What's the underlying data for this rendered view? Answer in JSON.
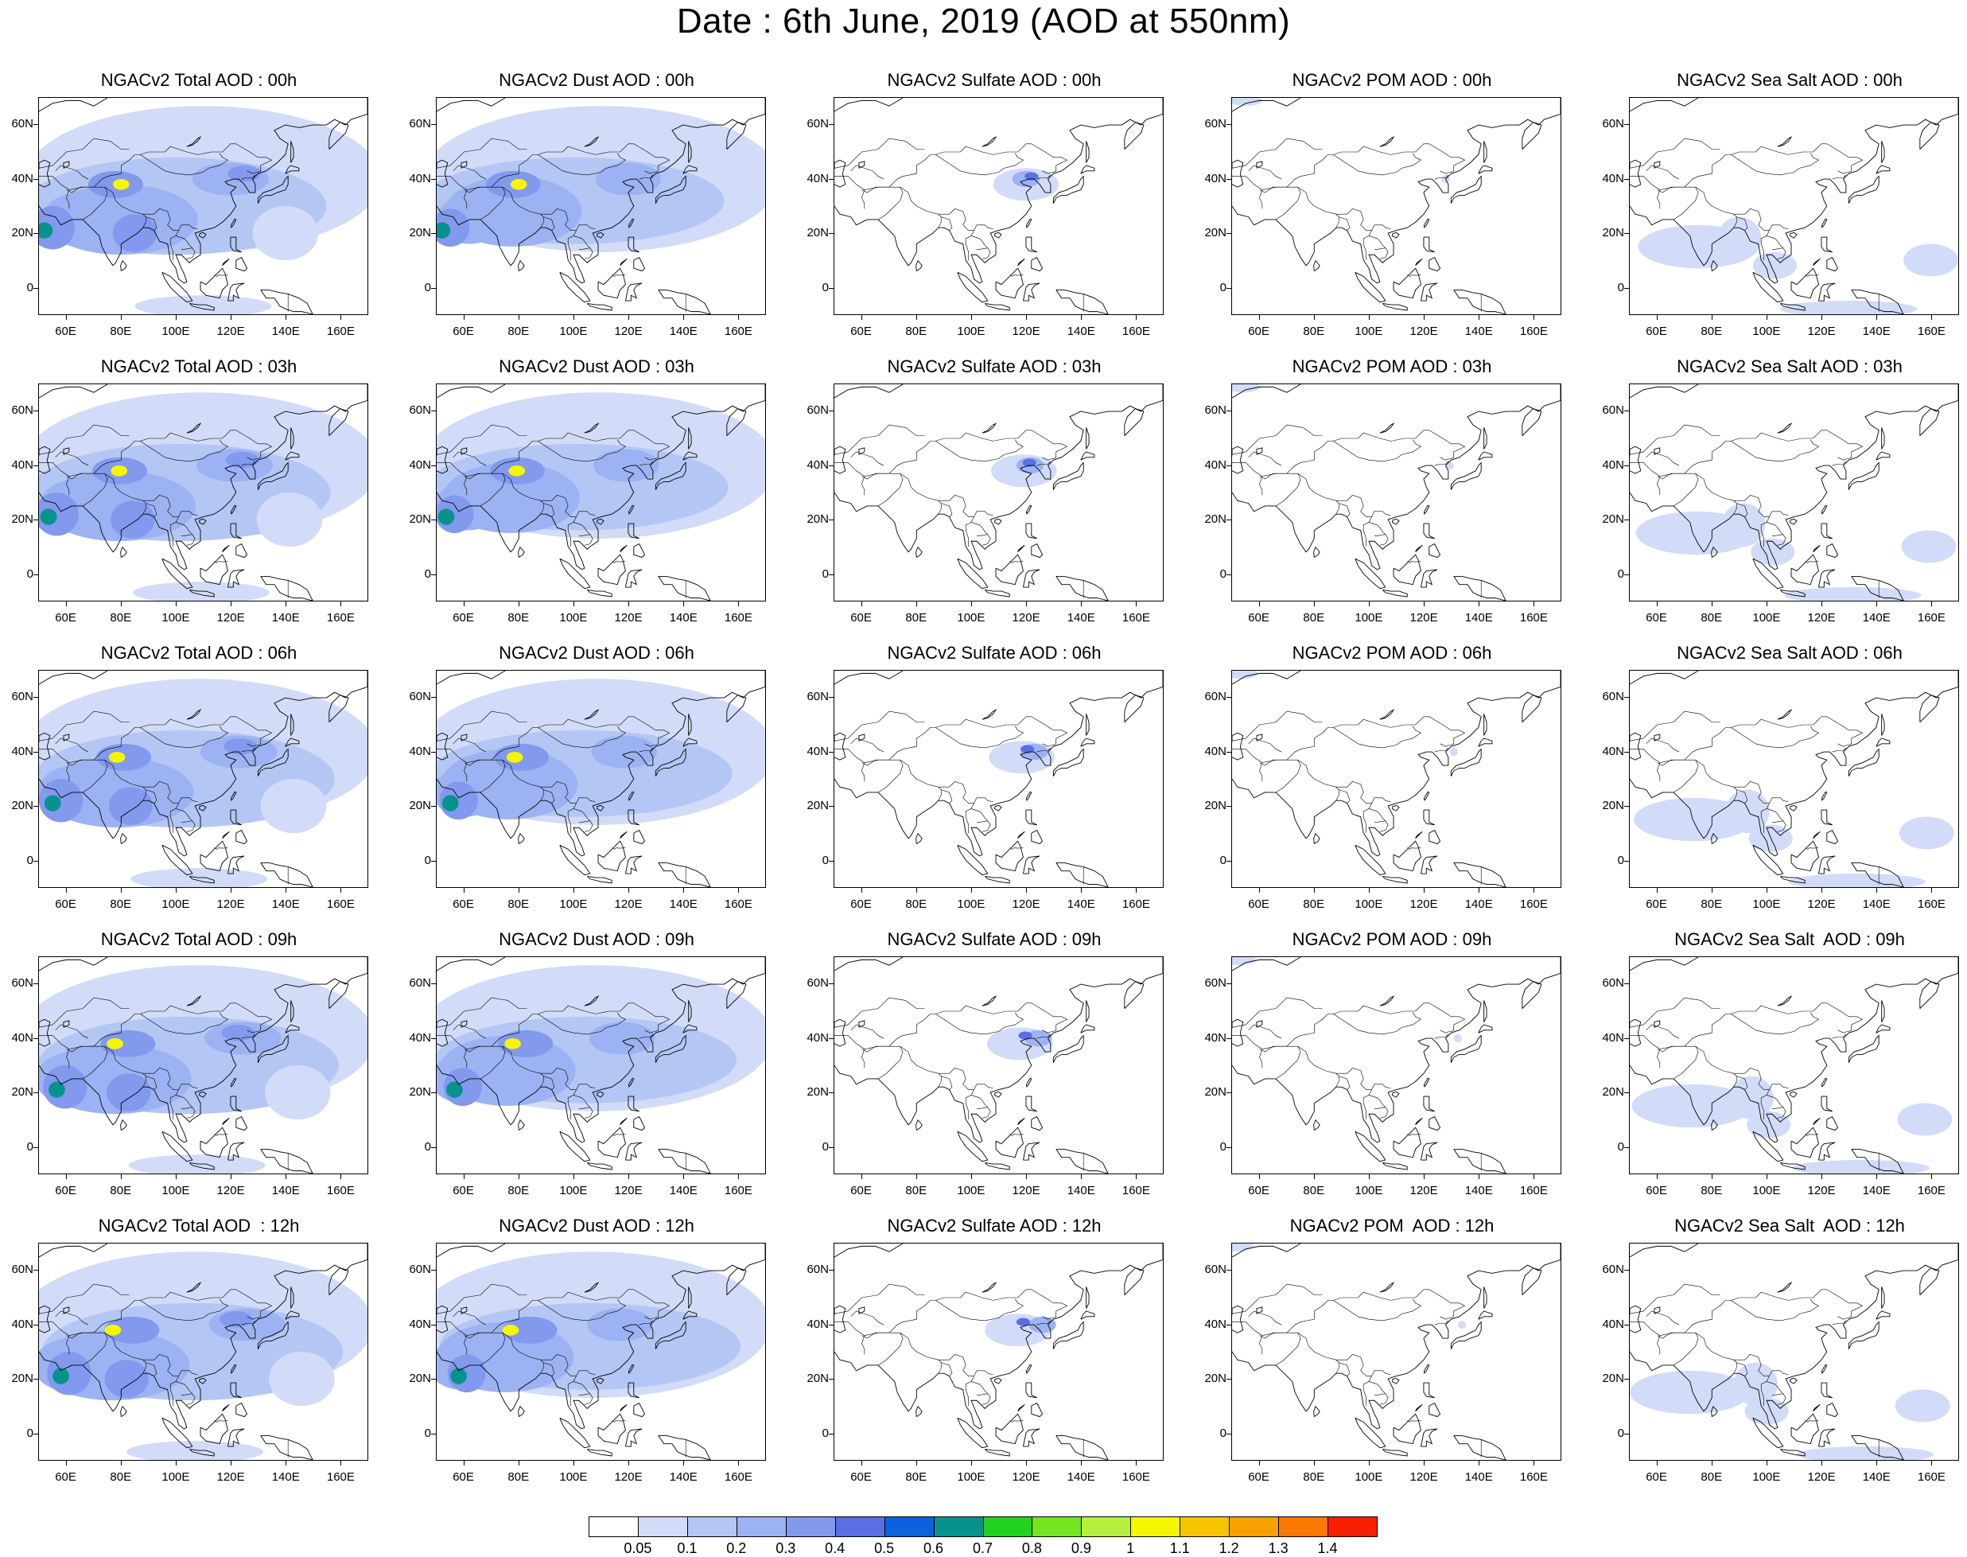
{
  "title": "Date : 6th June, 2019 (AOD at 550nm)",
  "panels": [
    [
      "NGACv2 Total AOD : 00h",
      "NGACv2 Dust AOD : 00h",
      "NGACv2 Sulfate AOD : 00h",
      "NGACv2 POM AOD : 00h",
      "NGACv2 Sea Salt AOD : 00h"
    ],
    [
      "NGACv2 Total AOD : 03h",
      "NGACv2 Dust AOD : 03h",
      "NGACv2 Sulfate AOD : 03h",
      "NGACv2 POM AOD : 03h",
      "NGACv2 Sea Salt AOD : 03h"
    ],
    [
      "NGACv2 Total AOD : 06h",
      "NGACv2 Dust AOD : 06h",
      "NGACv2 Sulfate AOD : 06h",
      "NGACv2 POM AOD : 06h",
      "NGACv2 Sea Salt AOD : 06h"
    ],
    [
      "NGACv2 Total AOD : 09h",
      "NGACv2 Dust AOD : 09h",
      "NGACv2 Sulfate AOD : 09h",
      "NGACv2 POM AOD : 09h",
      "NGACv2 Sea Salt  AOD : 09h"
    ],
    [
      "NGACv2 Total AOD  : 12h",
      "NGACv2 Dust AOD : 12h",
      "NGACv2 Sulfate AOD : 12h",
      "NGACv2 POM  AOD : 12h",
      "NGACv2 Sea Salt  AOD : 12h"
    ]
  ],
  "panel_types": [
    "total",
    "dust",
    "sulfate",
    "pom",
    "seasalt"
  ],
  "y_ticks": [
    "60N",
    "40N",
    "20N",
    "0"
  ],
  "x_ticks": [
    "60E",
    "80E",
    "100E",
    "120E",
    "140E",
    "160E"
  ],
  "colorbar": {
    "labels": [
      "0.05",
      "0.1",
      "0.2",
      "0.3",
      "0.4",
      "0.5",
      "0.6",
      "0.7",
      "0.8",
      "0.9",
      "1",
      "1.1",
      "1.2",
      "1.3",
      "1.4"
    ],
    "colors": [
      "#ffffff",
      "#d2dcf8",
      "#b4c6f4",
      "#9db2f2",
      "#8299ee",
      "#5b6ee6",
      "#0a62e0",
      "#08928e",
      "#22d21e",
      "#72e61e",
      "#b4f03c",
      "#f6f600",
      "#f8c400",
      "#f8a000",
      "#f87800",
      "#f82000"
    ]
  }
}
